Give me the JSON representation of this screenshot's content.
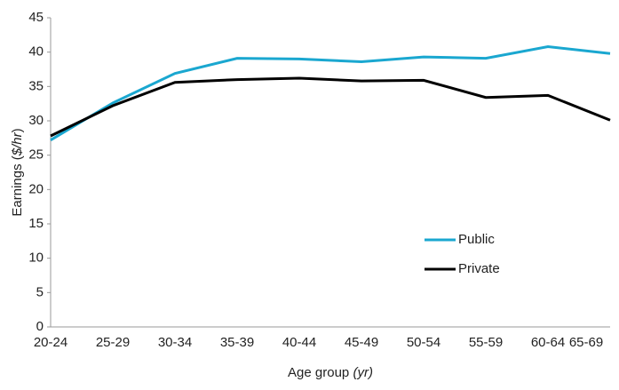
{
  "chart_data": {
    "type": "line",
    "y_label": [
      "Earnings (",
      "$/hr",
      ")"
    ],
    "x_label": [
      "Age group",
      "(yr)"
    ],
    "categories": [
      "20-24",
      "25-29",
      "30-34",
      "35-39",
      "40-44",
      "45-49",
      "50-54",
      "55-59",
      "60-64",
      "65-69"
    ],
    "series": [
      {
        "name": "Public",
        "color": "#1aa7d0",
        "values": [
          27.2,
          32.6,
          36.9,
          39.1,
          39.0,
          38.6,
          39.3,
          39.1,
          40.8,
          39.8
        ]
      },
      {
        "name": "Private",
        "color": "#000000",
        "values": [
          27.8,
          32.2,
          35.6,
          36.0,
          36.2,
          35.8,
          35.9,
          33.4,
          33.7,
          30.1
        ]
      }
    ],
    "ylim": [
      0,
      45
    ],
    "yticks": [
      0,
      5,
      10,
      15,
      20,
      25,
      30,
      35,
      40,
      45
    ],
    "grid": false,
    "legend": "lower-right"
  }
}
